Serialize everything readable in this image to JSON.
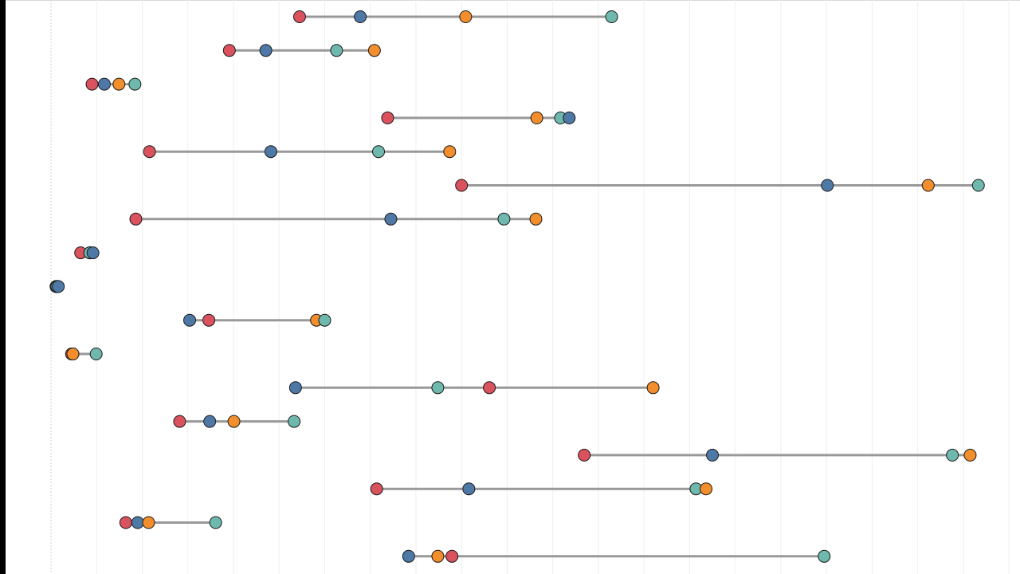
{
  "chart_data": {
    "type": "dot-plot",
    "grid": true,
    "legend": "none",
    "xlim": [
      0,
      205
    ],
    "series": [
      {
        "color": "#d9525e"
      },
      {
        "color": "#4e79a7"
      },
      {
        "color": "#f28e2b"
      },
      {
        "color": "#6fb8ad"
      }
    ],
    "rows": [
      {
        "values": [
          54.5,
          67.8,
          90.9,
          122.9
        ]
      },
      {
        "values": [
          39.1,
          47.1,
          70.9,
          62.6
        ]
      },
      {
        "values": [
          9.0,
          11.7,
          14.9,
          18.4
        ]
      },
      {
        "values": [
          73.8,
          113.6,
          106.5,
          111.7
        ]
      },
      {
        "values": [
          21.6,
          48.2,
          87.4,
          71.8
        ]
      },
      {
        "values": [
          90.0,
          170.2,
          192.3,
          203.3
        ]
      },
      {
        "values": [
          18.6,
          74.5,
          106.3,
          99.3
        ]
      },
      {
        "values": [
          6.5,
          9.2,
          8.5,
          8.5
        ]
      },
      {
        "values": [
          1.1,
          1.6,
          1.3,
          1.3
        ]
      },
      {
        "values": [
          34.6,
          30.4,
          58.2,
          60.0
        ]
      },
      {
        "values": [
          4.5,
          4.8,
          4.8,
          9.9
        ]
      },
      {
        "values": [
          96.1,
          53.6,
          132.0,
          84.8
        ]
      },
      {
        "values": [
          28.2,
          34.8,
          40.1,
          53.3
        ]
      },
      {
        "values": [
          116.9,
          145.0,
          201.5,
          197.6
        ]
      },
      {
        "values": [
          71.4,
          91.6,
          143.6,
          141.4
        ]
      },
      {
        "values": [
          16.4,
          19.0,
          21.4,
          36.1
        ]
      },
      {
        "values": [
          87.9,
          78.4,
          84.8,
          169.5
        ]
      }
    ]
  }
}
